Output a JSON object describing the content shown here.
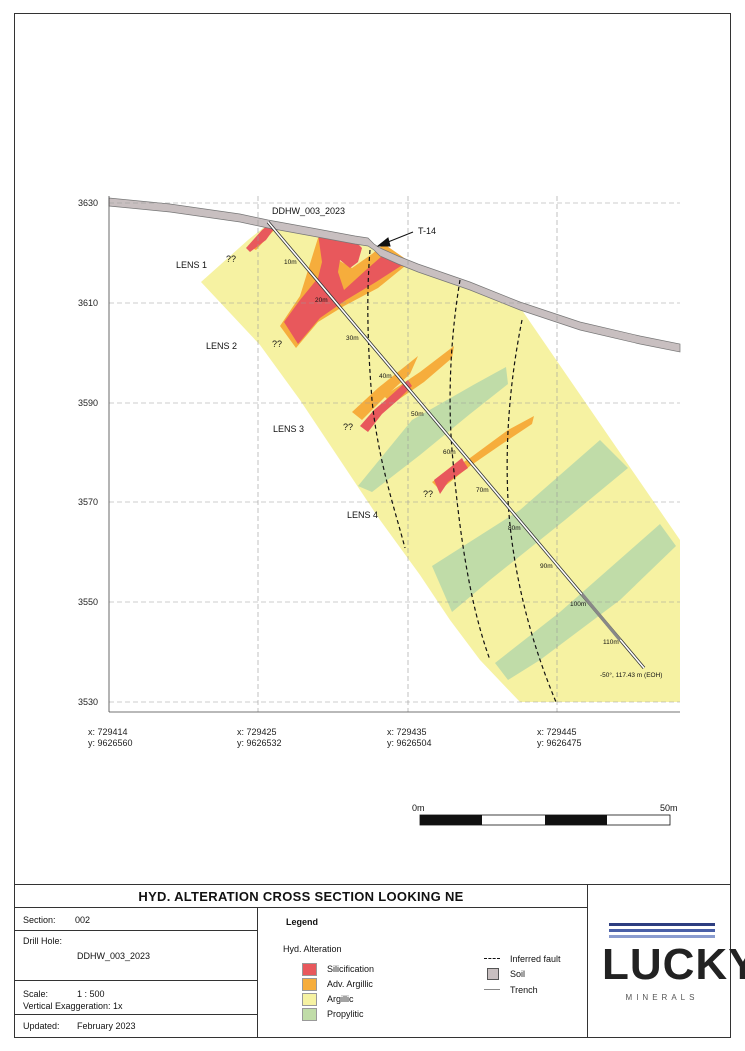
{
  "section_view": {
    "axis": {
      "elevations": [
        "3630",
        "3610",
        "3590",
        "3570",
        "3550",
        "3530"
      ],
      "eastings": [
        {
          "x": "x: 729414",
          "y": "y: 9626560"
        },
        {
          "x": "x: 729425",
          "y": "y: 9626532"
        },
        {
          "x": "x: 729435",
          "y": "y: 9626504"
        },
        {
          "x": "x: 729445",
          "y": "y: 9626475"
        }
      ]
    },
    "drill_hole": {
      "name": "DDHW_003_2023",
      "depth_marks": [
        "10m",
        "20m",
        "30m",
        "40m",
        "50m",
        "60m",
        "70m",
        "80m",
        "90m",
        "100m",
        "110m"
      ],
      "eoh_label": "-50°, 117.43 m (EOH)"
    },
    "trench_label": "T-14",
    "lenses": [
      "LENS 1",
      "LENS 2",
      "LENS 3",
      "LENS 4"
    ],
    "uncertain_mark": "??"
  },
  "scale_bar": {
    "start": "0m",
    "end": "50m"
  },
  "title_block": {
    "title": "HYD. ALTERATION CROSS SECTION LOOKING NE",
    "section_label": "Section:",
    "section_value": "002",
    "drillhole_label": "Drill Hole:",
    "drillhole_value": "DDHW_003_2023",
    "scale_label": "Scale:",
    "scale_value": "1 : 500",
    "vertical_exaggeration": "Vertical Exaggeration: 1x",
    "updated_label": "Updated:",
    "updated_value": "February 2023"
  },
  "legend": {
    "title": "Legend",
    "group_title": "Hyd. Alteration",
    "alteration": [
      {
        "label": "Silicification",
        "color": "#e8585c"
      },
      {
        "label": "Adv. Argillic",
        "color": "#f6ad3c"
      },
      {
        "label": "Argillic",
        "color": "#f6f2a2"
      },
      {
        "label": "Propylitic",
        "color": "#c0dca8"
      }
    ],
    "other": [
      {
        "label": "Inferred fault",
        "symbol": "dashed-line"
      },
      {
        "label": "Soil",
        "symbol": "soil-box"
      },
      {
        "label": "Trench",
        "symbol": "thin-line"
      }
    ]
  },
  "logo": {
    "word": "LUCKY",
    "sub": "MINERALS",
    "accent": "#2e3e80"
  }
}
